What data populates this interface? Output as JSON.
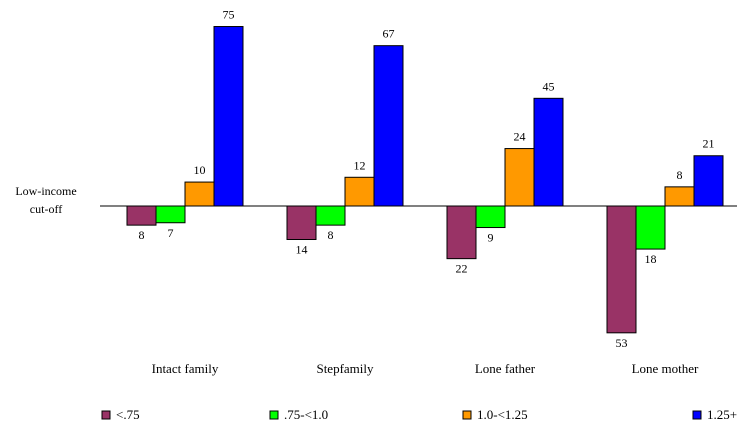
{
  "chart_data": {
    "type": "bar",
    "title": "",
    "ylabel": "",
    "baseline_label": "Low-income cut-off",
    "categories": [
      "Intact family",
      "Stepfamily",
      "Lone father",
      "Lone mother"
    ],
    "series": [
      {
        "name": "<.75",
        "color": "#993366",
        "values": [
          -8,
          -14,
          -22,
          -53
        ]
      },
      {
        "name": ".75-<1.0",
        "color": "#00ff00",
        "values": [
          -7,
          -8,
          -9,
          -18
        ]
      },
      {
        "name": "1.0-<1.25",
        "color": "#ff9900",
        "values": [
          10,
          12,
          24,
          8
        ]
      },
      {
        "name": "1.25+",
        "color": "#0000ff",
        "values": [
          75,
          67,
          45,
          21
        ]
      }
    ],
    "value_labels": [
      [
        "8",
        "14",
        "22",
        "53"
      ],
      [
        "7",
        "8",
        "9",
        "18"
      ],
      [
        "10",
        "12",
        "24",
        "8"
      ],
      [
        "75",
        "67",
        "45",
        "21"
      ]
    ],
    "ylim": [
      -60,
      80
    ],
    "grid": false,
    "legend": "bottom"
  }
}
